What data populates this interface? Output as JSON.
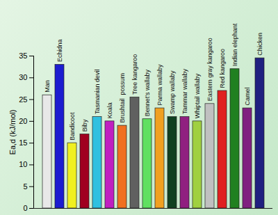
{
  "chart_data": {
    "type": "bar",
    "categories": [
      "Man",
      "Echidna",
      "Bandicoot",
      "Biby",
      "Tasmanian devil",
      "Koala",
      "Brushtail  possum",
      "Tree kangaroo",
      "Bennet's wallaby",
      "Parma wallaby",
      "Swamp wallaby",
      "Tammar wallaby",
      "Whiptail wallaby",
      "Eastern gray kangaroo",
      "Red kangaroo",
      "Indian elephant",
      "Camel",
      "Chicken"
    ],
    "values": [
      26,
      33,
      15,
      17,
      21,
      20,
      19,
      25.5,
      20.5,
      23,
      21,
      21,
      20,
      24,
      27,
      32,
      23,
      34.5
    ],
    "colors": [
      "#e8e8e8",
      "#1c1cd0",
      "#f0f020",
      "#a00020",
      "#30c0e0",
      "#c020c0",
      "#f07020",
      "#606060",
      "#60e060",
      "#f0a020",
      "#104020",
      "#902080",
      "#a0d040",
      "#c0c0c0",
      "#e02020",
      "#208020",
      "#802080",
      "#202080"
    ],
    "y_label": "Ea,d (kJ/mol)",
    "ylim": [
      0,
      35
    ],
    "yticks": [
      0,
      5,
      10,
      15,
      20,
      25,
      30,
      35
    ],
    "grid": false
  }
}
